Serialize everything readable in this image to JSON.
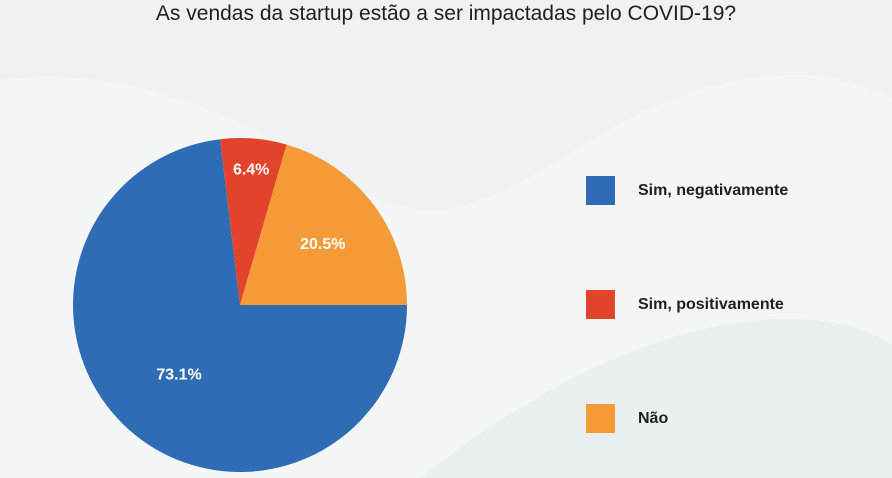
{
  "chart_data": {
    "type": "pie",
    "title": "As vendas da startup estão a ser impactadas pelo COVID-19?",
    "slices": [
      {
        "label": "Sim, negativamente",
        "value": 73.1,
        "display": "73.1%",
        "color": "#2e6db5"
      },
      {
        "label": "Sim, positivamente",
        "value": 6.4,
        "display": "6.4%",
        "color": "#e1442a"
      },
      {
        "label": "Não",
        "value": 20.5,
        "display": "20.5%",
        "color": "#f49b38"
      }
    ],
    "legend_position": "right"
  },
  "colors": {
    "background": "#f4f6f6",
    "background_shape": "#e9eeee"
  }
}
